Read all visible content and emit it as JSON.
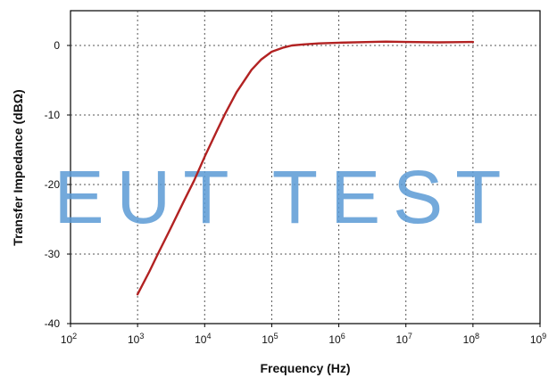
{
  "chart_data": {
    "type": "line",
    "xscale": "log",
    "xlabel": "Frequency (Hz)",
    "ylabel": "Transfer Impedance (dBΩ)",
    "xlim": [
      100,
      1000000000
    ],
    "ylim": [
      -40,
      5
    ],
    "grid": true,
    "x_ticks": [
      {
        "value": 100,
        "base": "10",
        "exp": "2"
      },
      {
        "value": 1000,
        "base": "10",
        "exp": "3"
      },
      {
        "value": 10000,
        "base": "10",
        "exp": "4"
      },
      {
        "value": 100000,
        "base": "10",
        "exp": "5"
      },
      {
        "value": 1000000,
        "base": "10",
        "exp": "6"
      },
      {
        "value": 10000000,
        "base": "10",
        "exp": "7"
      },
      {
        "value": 100000000,
        "base": "10",
        "exp": "8"
      },
      {
        "value": 1000000000,
        "base": "10",
        "exp": "9"
      }
    ],
    "y_ticks": [
      {
        "value": 0,
        "label": "0"
      },
      {
        "value": -10,
        "label": "-10"
      },
      {
        "value": -20,
        "label": "-20"
      },
      {
        "value": -30,
        "label": "-30"
      },
      {
        "value": -40,
        "label": "-40"
      }
    ],
    "series": [
      {
        "color": "#b22222",
        "x": [
          1000,
          1500,
          2000,
          3000,
          5000,
          7000,
          10000,
          15000,
          20000,
          30000,
          50000,
          70000,
          100000,
          150000,
          200000,
          300000,
          500000,
          1000000,
          3000000,
          5000000,
          10000000,
          30000000,
          100000000
        ],
        "y": [
          -35.8,
          -32.5,
          -30.0,
          -26.6,
          -22.2,
          -19.4,
          -16.0,
          -12.4,
          -9.9,
          -6.7,
          -3.5,
          -2.0,
          -0.9,
          -0.3,
          0.0,
          0.15,
          0.3,
          0.4,
          0.5,
          0.55,
          0.5,
          0.45,
          0.5
        ]
      }
    ],
    "watermark": "EUT TEST",
    "watermark_color": "#5b9bd5"
  }
}
